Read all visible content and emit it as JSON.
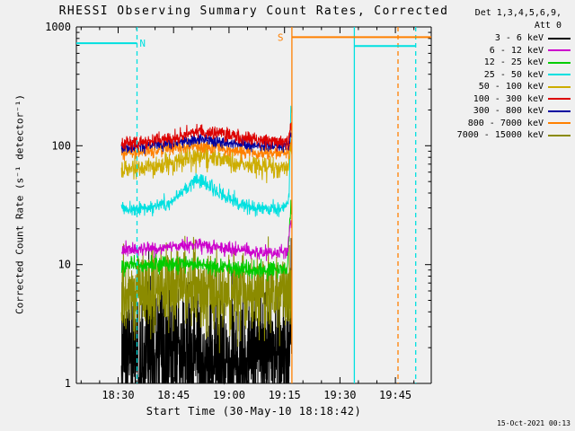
{
  "chart_data": {
    "type": "line",
    "title": "RHESSI Observing Summary Count Rates, Corrected",
    "xlabel": "Start Time (30-May-10 18:18:42)",
    "ylabel": "Corrected Count Rate (s⁻¹ detector⁻¹)",
    "footer_timestamp": "15-Oct-2021 00:13",
    "background": "#f0f0f0",
    "x_axis": {
      "range_minutes": [
        0,
        96
      ],
      "minor_step": 5,
      "minor_offset": 1.3,
      "ticks": [
        {
          "label": "18:30",
          "t": 11.3
        },
        {
          "label": "18:45",
          "t": 26.3
        },
        {
          "label": "19:00",
          "t": 41.3
        },
        {
          "label": "19:15",
          "t": 56.3
        },
        {
          "label": "19:30",
          "t": 71.3
        },
        {
          "label": "19:45",
          "t": 86.3
        }
      ]
    },
    "y_axis": {
      "scale": "log",
      "range": [
        1,
        1000
      ],
      "ticks": [
        {
          "label": "1",
          "v": 1
        },
        {
          "label": "10",
          "v": 10
        },
        {
          "label": "100",
          "v": 100
        },
        {
          "label": "1000",
          "v": 1000
        }
      ]
    },
    "legend": {
      "header1": "Det 1,3,4,5,6,9,",
      "header2": "Att 0",
      "entries": [
        {
          "label": "3 - 6 keV",
          "color": "#000000"
        },
        {
          "label": "6 - 12 keV",
          "color": "#CC00CC"
        },
        {
          "label": "12 - 25 keV",
          "color": "#00CC00"
        },
        {
          "label": "25 - 50 keV",
          "color": "#00E0E0"
        },
        {
          "label": "50 - 100 keV",
          "color": "#CDAD00"
        },
        {
          "label": "100 - 300 keV",
          "color": "#DC0000"
        },
        {
          "label": "300 - 800 keV",
          "color": "#0000A0"
        },
        {
          "label": "800 - 7000 keV",
          "color": "#FF8000"
        },
        {
          "label": "7000 - 15000 keV",
          "color": "#8B8B00"
        }
      ]
    },
    "series": [
      {
        "name": "3 - 6 keV",
        "color": "#000000",
        "sigma": 0.3,
        "dt": 0.05,
        "points": [
          [
            12.2,
            1.7
          ],
          [
            20,
            1.85
          ],
          [
            28,
            1.7
          ],
          [
            36,
            1.45
          ],
          [
            40,
            1.35
          ],
          [
            46,
            1.6
          ],
          [
            52,
            1.8
          ],
          [
            57.4,
            1.9
          ],
          [
            58.0,
            4.5
          ],
          [
            58.3,
            3.5
          ]
        ]
      },
      {
        "name": "6 - 12 keV",
        "color": "#CC00CC",
        "sigma": 0.03,
        "dt": 0.08,
        "points": [
          [
            12.2,
            13.2
          ],
          [
            22,
            13.8
          ],
          [
            30,
            14.6
          ],
          [
            36,
            14.2
          ],
          [
            44,
            13.2
          ],
          [
            52,
            12.6
          ],
          [
            57,
            12.6
          ],
          [
            58.0,
            24
          ],
          [
            58.3,
            20
          ]
        ]
      },
      {
        "name": "12 - 25 keV",
        "color": "#00CC00",
        "sigma": 0.035,
        "dt": 0.08,
        "points": [
          [
            12.2,
            9.6
          ],
          [
            22,
            10
          ],
          [
            32,
            10.2
          ],
          [
            42,
            9.3
          ],
          [
            50,
            9
          ],
          [
            57,
            9.2
          ],
          [
            58.0,
            32
          ],
          [
            58.3,
            26
          ]
        ]
      },
      {
        "name": "25 - 50 keV",
        "color": "#00E0E0",
        "sigma": 0.03,
        "dt": 0.08,
        "points": [
          [
            12.2,
            29
          ],
          [
            20,
            30
          ],
          [
            25,
            33
          ],
          [
            29,
            42
          ],
          [
            32,
            50
          ],
          [
            34,
            51
          ],
          [
            37,
            44
          ],
          [
            40,
            38
          ],
          [
            44,
            33
          ],
          [
            48,
            30
          ],
          [
            53,
            29
          ],
          [
            56.8,
            30
          ],
          [
            57.6,
            40
          ],
          [
            58.05,
            235
          ],
          [
            58.3,
            190
          ]
        ]
      },
      {
        "name": "50 - 100 keV",
        "color": "#CDAD00",
        "sigma": 0.045,
        "dt": 0.08,
        "points": [
          [
            12.2,
            63
          ],
          [
            20,
            67
          ],
          [
            27,
            73
          ],
          [
            32,
            80
          ],
          [
            35,
            82
          ],
          [
            39,
            77
          ],
          [
            44,
            70
          ],
          [
            50,
            65
          ],
          [
            55,
            64
          ],
          [
            57.4,
            66
          ],
          [
            58.05,
            95
          ],
          [
            58.3,
            88
          ]
        ]
      },
      {
        "name": "100 - 300 keV",
        "color": "#DC0000",
        "sigma": 0.03,
        "dt": 0.08,
        "points": [
          [
            12.2,
            104
          ],
          [
            20,
            109
          ],
          [
            27,
            118
          ],
          [
            32,
            130
          ],
          [
            35,
            133
          ],
          [
            39,
            127
          ],
          [
            44,
            117
          ],
          [
            50,
            110
          ],
          [
            55,
            108
          ],
          [
            57.4,
            110
          ],
          [
            58.05,
            152
          ],
          [
            58.3,
            145
          ]
        ]
      },
      {
        "name": "300 - 800 keV",
        "color": "#0000A0",
        "sigma": 0.025,
        "dt": 0.08,
        "points": [
          [
            12.2,
            96
          ],
          [
            20,
            100
          ],
          [
            28,
            108
          ],
          [
            33,
            113
          ],
          [
            38,
            109
          ],
          [
            44,
            103
          ],
          [
            50,
            100
          ],
          [
            57.4,
            100
          ],
          [
            58.05,
            126
          ],
          [
            58.3,
            120
          ]
        ]
      },
      {
        "name": "800 - 7000 keV",
        "color": "#FF8000",
        "sigma": 0.03,
        "dt": 0.08,
        "points": [
          [
            12.2,
            86
          ],
          [
            20,
            90
          ],
          [
            28,
            97
          ],
          [
            33,
            101
          ],
          [
            38,
            96
          ],
          [
            44,
            90
          ],
          [
            50,
            87
          ],
          [
            57.4,
            88
          ],
          [
            58.05,
            112
          ],
          [
            58.3,
            105
          ]
        ]
      },
      {
        "name": "7000 - 15000 keV",
        "color": "#8B8B00",
        "sigma": 0.17,
        "dt": 0.06,
        "points": [
          [
            12.2,
            5.5
          ],
          [
            18,
            6
          ],
          [
            26,
            6.2
          ],
          [
            34,
            5.8
          ],
          [
            42,
            5.5
          ],
          [
            50,
            5.6
          ],
          [
            57.4,
            5.7
          ],
          [
            58.3,
            6
          ]
        ]
      }
    ],
    "draw_order": [
      0,
      8,
      2,
      1,
      3,
      4,
      7,
      6,
      5
    ],
    "annotations": {
      "vlines": [
        {
          "t": 16.4,
          "color": "#00E0E0",
          "style": "dashed",
          "name": "night-flag-dashed-left"
        },
        {
          "t": 58.3,
          "color": "#FF8000",
          "style": "solid",
          "name": "saa-start-flag"
        },
        {
          "t": 75.2,
          "color": "#00E0E0",
          "style": "solid",
          "name": "night-start-flag"
        },
        {
          "t": 87.0,
          "color": "#FF8000",
          "style": "dashed",
          "name": "saa-end-flag-dashed"
        },
        {
          "t": 91.8,
          "color": "#00E0E0",
          "style": "dashed",
          "name": "night-flag-dashed-right"
        }
      ],
      "hlines": [
        {
          "t1": 0,
          "t2": 16.4,
          "v": 730,
          "color": "#00E0E0",
          "name": "night-bar-left"
        },
        {
          "t1": 58.3,
          "t2": 96,
          "v": 820,
          "color": "#FF8000",
          "name": "saa-bar"
        },
        {
          "t1": 75.2,
          "t2": 91.8,
          "v": 690,
          "color": "#00E0E0",
          "name": "night-bar-right"
        }
      ],
      "labels": [
        {
          "text": "N",
          "t": 17.9,
          "v": 730,
          "color": "#00E0E0"
        },
        {
          "text": "S",
          "t": 55.2,
          "v": 820,
          "color": "#FF8000"
        }
      ]
    }
  }
}
